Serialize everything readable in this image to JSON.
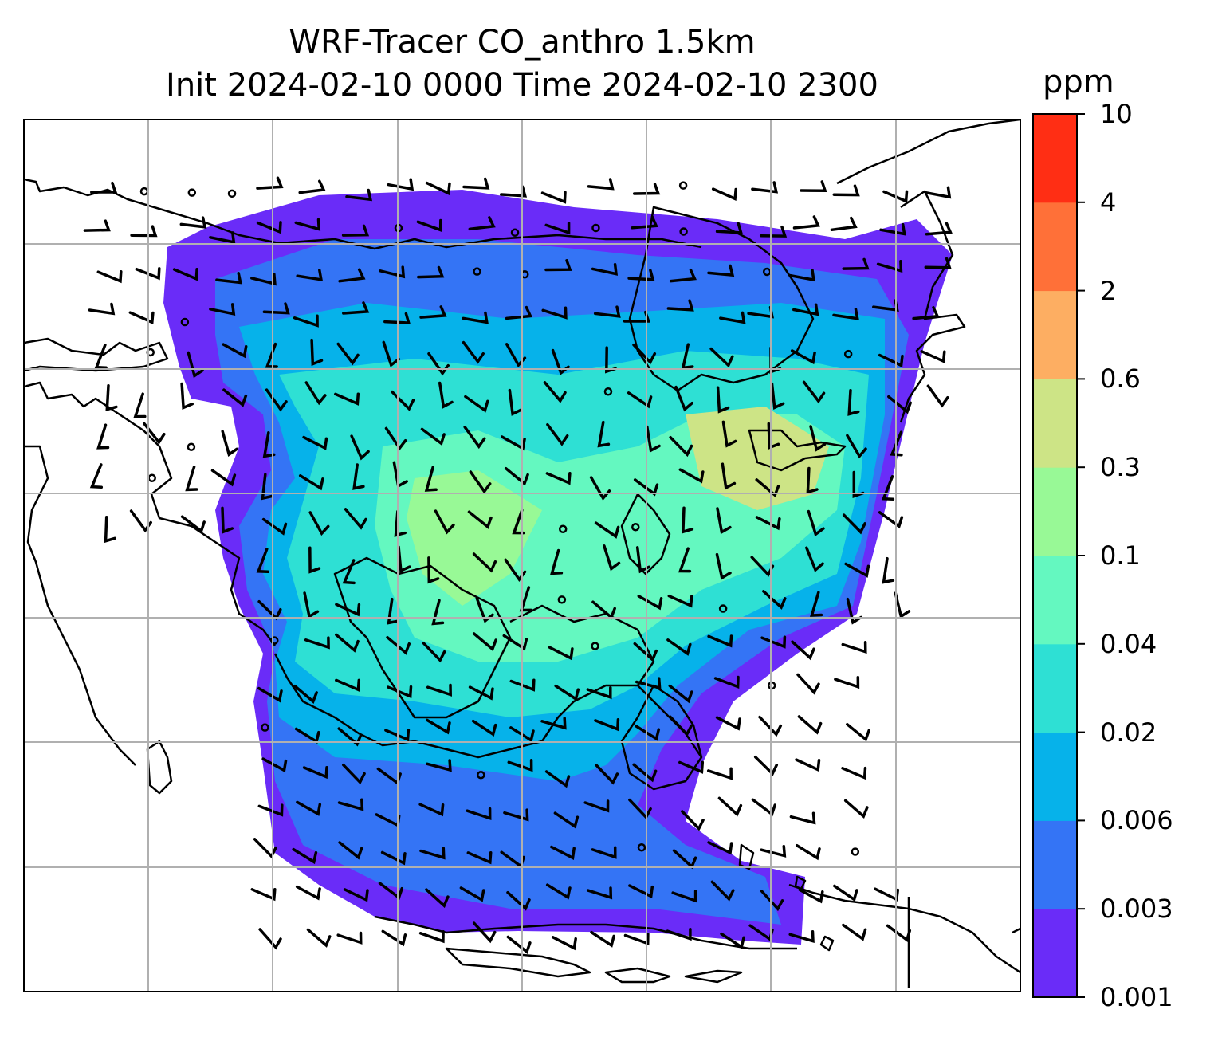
{
  "title": {
    "line1": "WRF-Tracer CO_anthro 1.5km",
    "line2": "Init 2024-02-10 0000 Time 2024-02-10 2300"
  },
  "colorbar": {
    "unit": "ppm",
    "levels": [
      "0.001",
      "0.003",
      "0.006",
      "0.02",
      "0.04",
      "0.1",
      "0.3",
      "0.6",
      "2",
      "4",
      "10"
    ],
    "colors": [
      "#6a2cf8",
      "#3474f5",
      "#06b2ea",
      "#2ee0d4",
      "#64f8c0",
      "#98f996",
      "#cde486",
      "#fdae62",
      "#ff7038",
      "#ff2e14"
    ]
  },
  "map": {
    "grid": true,
    "wind_barbs": true,
    "fill_colors": {
      "low": "#6a2cf8",
      "low2": "#3474f5",
      "mid": "#06b2ea",
      "mid2": "#2ee0d4",
      "high": "#64f8c0",
      "high2": "#98f996",
      "peak": "#cde486"
    }
  }
}
